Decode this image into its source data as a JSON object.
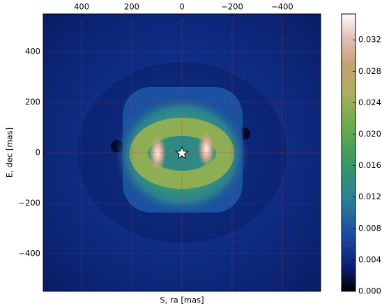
{
  "chart_data": {
    "type": "heatmap",
    "xlabel": "S, ra [mas]",
    "ylabel": "E, dec [mas]",
    "xlim": [
      553,
      -553
    ],
    "ylim": [
      -549,
      549
    ],
    "xticks": [
      400,
      200,
      0,
      {
        "value": -200,
        "label": "−200"
      },
      {
        "value": -400,
        "label": "−400"
      }
    ],
    "yticks": [
      400,
      200,
      0,
      {
        "value": -200,
        "label": "−200"
      },
      {
        "value": -400,
        "label": "−400"
      }
    ],
    "grid": true,
    "colorbar": {
      "lim": [
        0,
        0.0353
      ],
      "ticks": [
        {
          "value": 0,
          "label": "0.000"
        },
        {
          "value": 0.004,
          "label": "0.004"
        },
        {
          "value": 0.008,
          "label": "0.008"
        },
        {
          "value": 0.012,
          "label": "0.012"
        },
        {
          "value": 0.016,
          "label": "0.016"
        },
        {
          "value": 0.02,
          "label": "0.020"
        },
        {
          "value": 0.024,
          "label": "0.024"
        },
        {
          "value": 0.028,
          "label": "0.028"
        },
        {
          "value": 0.032,
          "label": "0.032"
        }
      ]
    }
  }
}
